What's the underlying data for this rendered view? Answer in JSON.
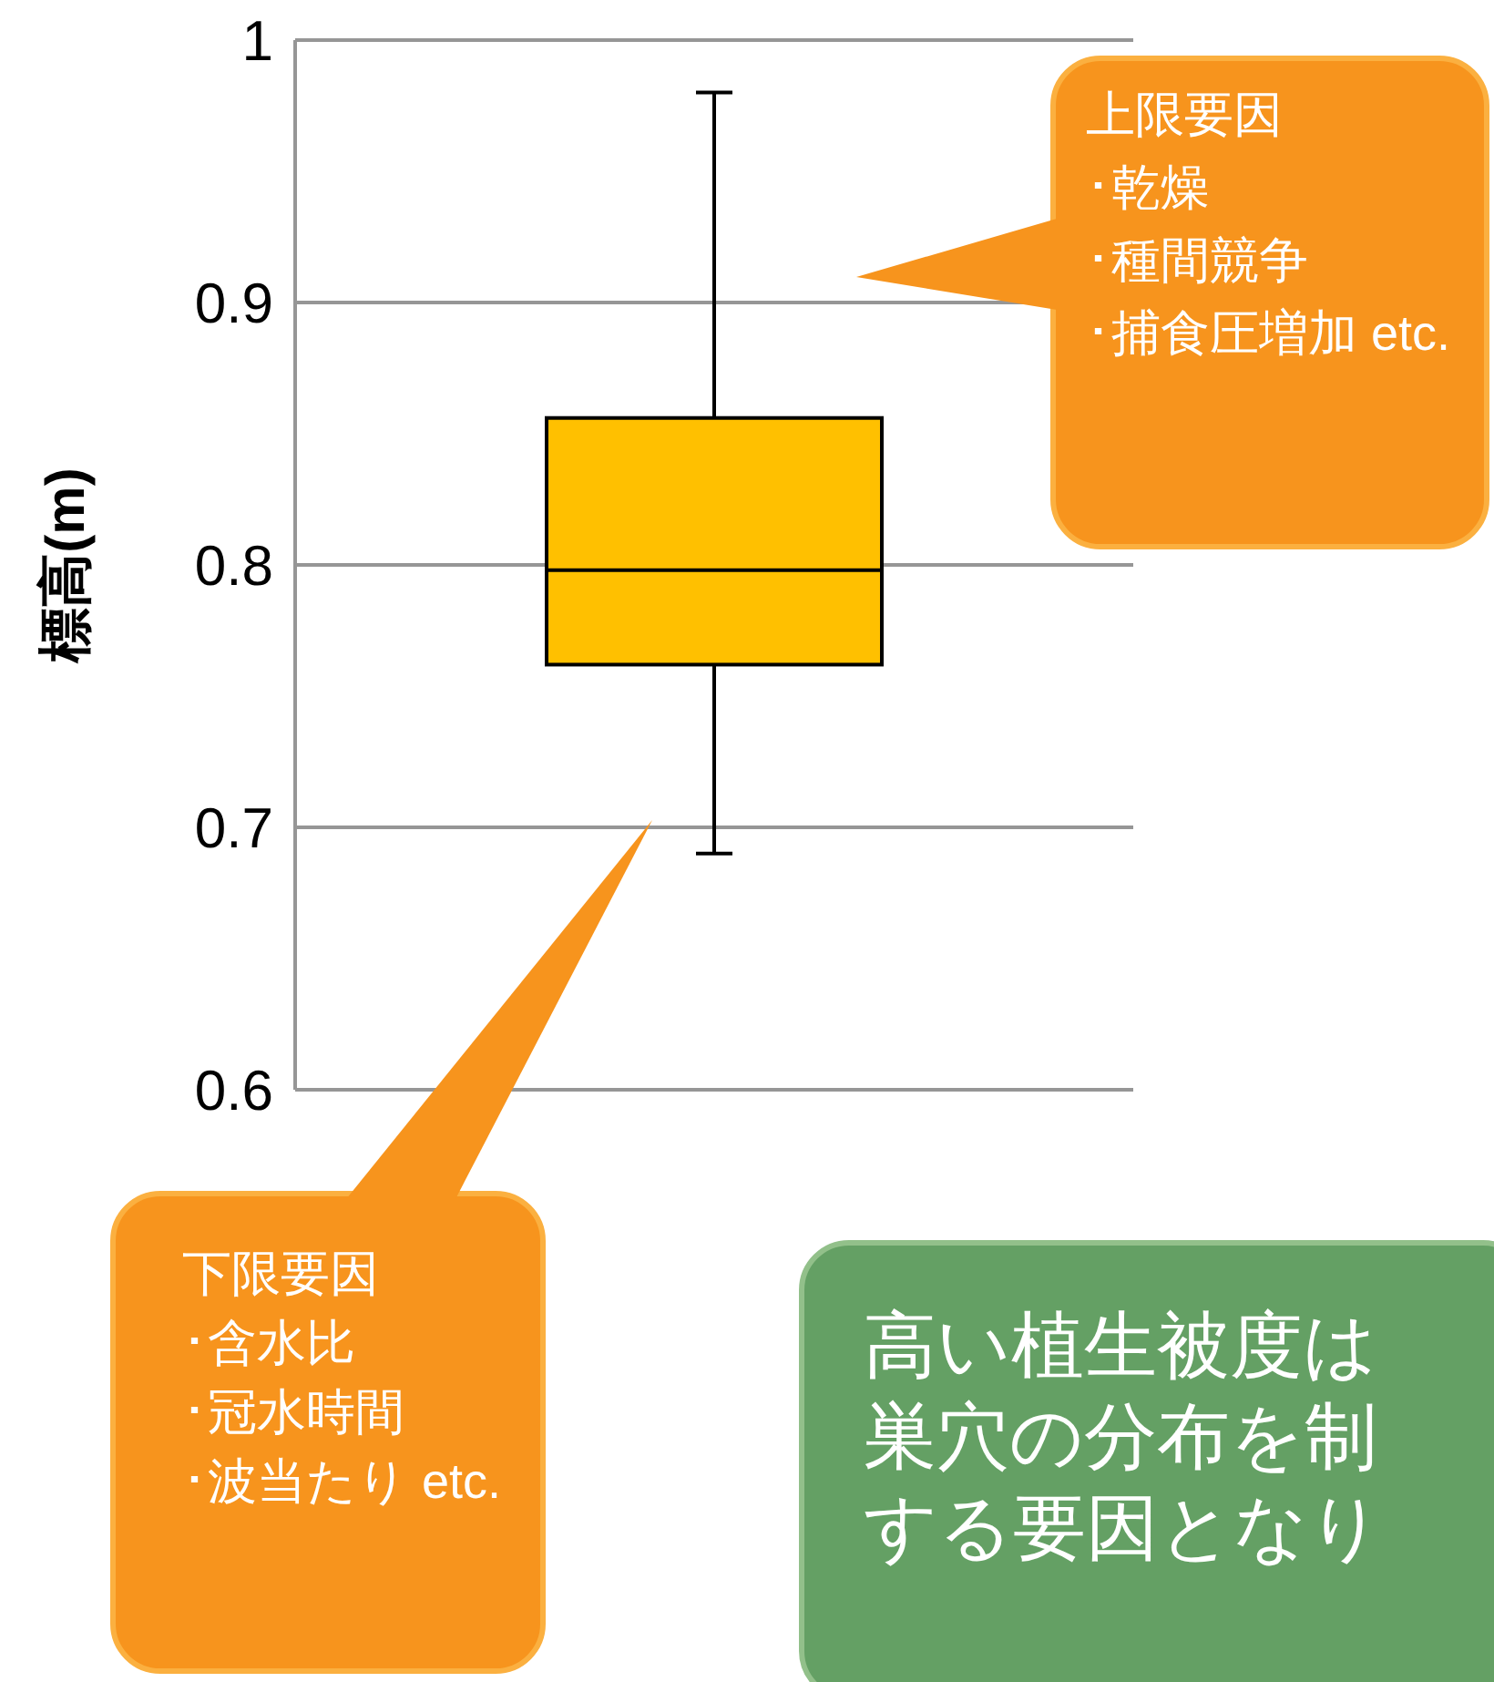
{
  "chart_data": {
    "type": "box",
    "categories": [
      null
    ],
    "boxes": [
      {
        "low": 0.69,
        "q1": 0.762,
        "median": 0.798,
        "q3": 0.856,
        "high": 0.98
      }
    ],
    "color": "#ffc000",
    "ylabel": "標高(m)",
    "ylim": [
      0.6,
      1
    ],
    "yticks": [
      0.6,
      0.7,
      0.8,
      0.9,
      1
    ],
    "grid": "y",
    "annotations": [
      "上限要因･乾燥･種間競争･捕食圧増加 etc.",
      "下限要因･含水比･冠水時間･波当たり etc.",
      "高い植生被度は巣穴の分布を制する要因となり"
    ]
  }
}
